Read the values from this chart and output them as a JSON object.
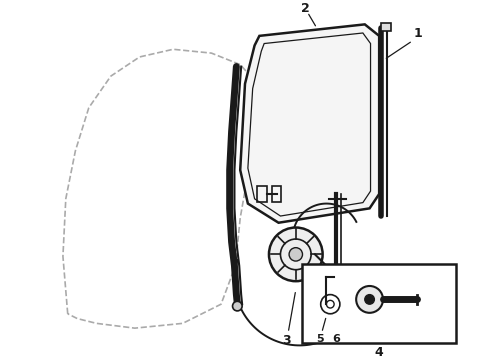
{
  "bg_color": "#ffffff",
  "line_color": "#1a1a1a",
  "dashed_color": "#aaaaaa",
  "fig_width": 4.9,
  "fig_height": 3.6,
  "dpi": 100
}
